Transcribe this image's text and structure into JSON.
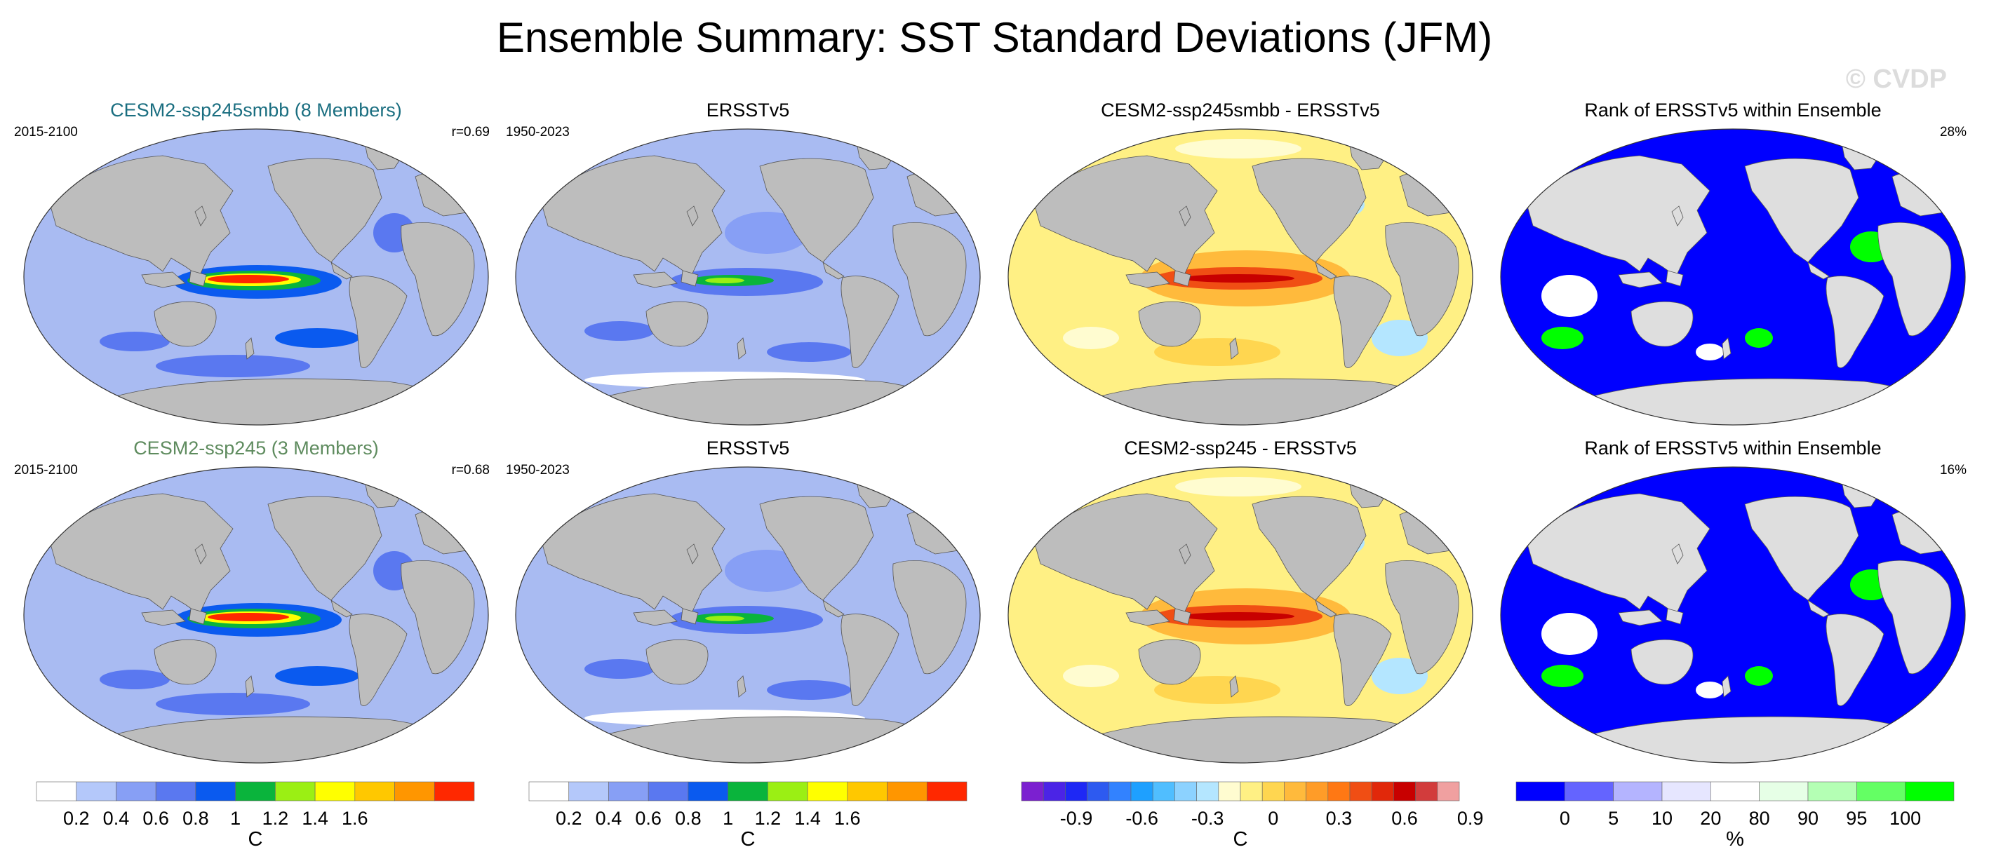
{
  "title": "Ensemble Summary: SST Standard Deviations (JFM)",
  "watermark": "© CVDP",
  "colors": {
    "land": "#bdbdbd",
    "ocean_base": "#a9bbf2",
    "rank_blue": "#0000ff",
    "rank_green": "#00ff00",
    "rank_land": "#dedede",
    "title_teal": "#1a6e80",
    "title_green": "#5e8b5e"
  },
  "rows": [
    {
      "panels": [
        {
          "kind": "model",
          "title": "CESM2-ssp245smbb (8 Members)",
          "title_color": "#1a6e80",
          "left_text": "2015-2100",
          "right_text": "r=0.69"
        },
        {
          "kind": "obs",
          "title": "ERSSTv5",
          "left_text": "1950-2023",
          "right_text": ""
        },
        {
          "kind": "diff",
          "title": "CESM2-ssp245smbb - ERSSTv5",
          "left_text": "",
          "right_text": ""
        },
        {
          "kind": "rank",
          "title": "Rank of ERSSTv5 within Ensemble",
          "left_text": "",
          "right_text": "28%"
        }
      ]
    },
    {
      "panels": [
        {
          "kind": "model",
          "title": "CESM2-ssp245 (3 Members)",
          "title_color": "#5e8b5e",
          "left_text": "2015-2100",
          "right_text": "r=0.68"
        },
        {
          "kind": "obs",
          "title": "ERSSTv5",
          "left_text": "1950-2023",
          "right_text": ""
        },
        {
          "kind": "diff",
          "title": "CESM2-ssp245 - ERSSTv5",
          "left_text": "",
          "right_text": ""
        },
        {
          "kind": "rank",
          "title": "Rank of ERSSTv5 within Ensemble",
          "left_text": "",
          "right_text": "16%"
        }
      ]
    }
  ],
  "colorbars": [
    {
      "unit": "C",
      "colors": [
        "#ffffff",
        "#b4c8fa",
        "#879ff5",
        "#5a78f0",
        "#0a5aef",
        "#0ab43c",
        "#9bef14",
        "#ffff00",
        "#ffc800",
        "#ff9600",
        "#ff2800"
      ],
      "labels": [
        "0.2",
        "0.4",
        "0.6",
        "0.8",
        "1",
        "1.2",
        "1.4",
        "1.6"
      ]
    },
    {
      "unit": "C",
      "colors": [
        "#ffffff",
        "#b4c8fa",
        "#879ff5",
        "#5a78f0",
        "#0a5aef",
        "#0ab43c",
        "#9bef14",
        "#ffff00",
        "#ffc800",
        "#ff9600",
        "#ff2800"
      ],
      "labels": [
        "0.2",
        "0.4",
        "0.6",
        "0.8",
        "1",
        "1.2",
        "1.4",
        "1.6"
      ]
    },
    {
      "unit": "C",
      "colors": [
        "#7b20d0",
        "#4b24e6",
        "#1e28f5",
        "#2d5af0",
        "#3282ff",
        "#1ea0ff",
        "#50beff",
        "#8cd2ff",
        "#b4e6ff",
        "#fffcd0",
        "#fff084",
        "#ffd650",
        "#ffba3c",
        "#ff9c28",
        "#ff7814",
        "#f04e14",
        "#e1280a",
        "#c80000",
        "#d23c3c",
        "#f0a0a0"
      ],
      "labels": [
        "-0.9",
        "-0.6",
        "-0.3",
        "0",
        "0.3",
        "0.6",
        "0.9"
      ]
    },
    {
      "unit": "%",
      "colors": [
        "#0000ff",
        "#6464ff",
        "#b4b4ff",
        "#e6e6ff",
        "#ffffff",
        "#e6ffe6",
        "#b4ffb4",
        "#64ff64",
        "#00ff00"
      ],
      "labels": [
        "0",
        "5",
        "10",
        "20",
        "80",
        "90",
        "95",
        "100"
      ]
    }
  ]
}
